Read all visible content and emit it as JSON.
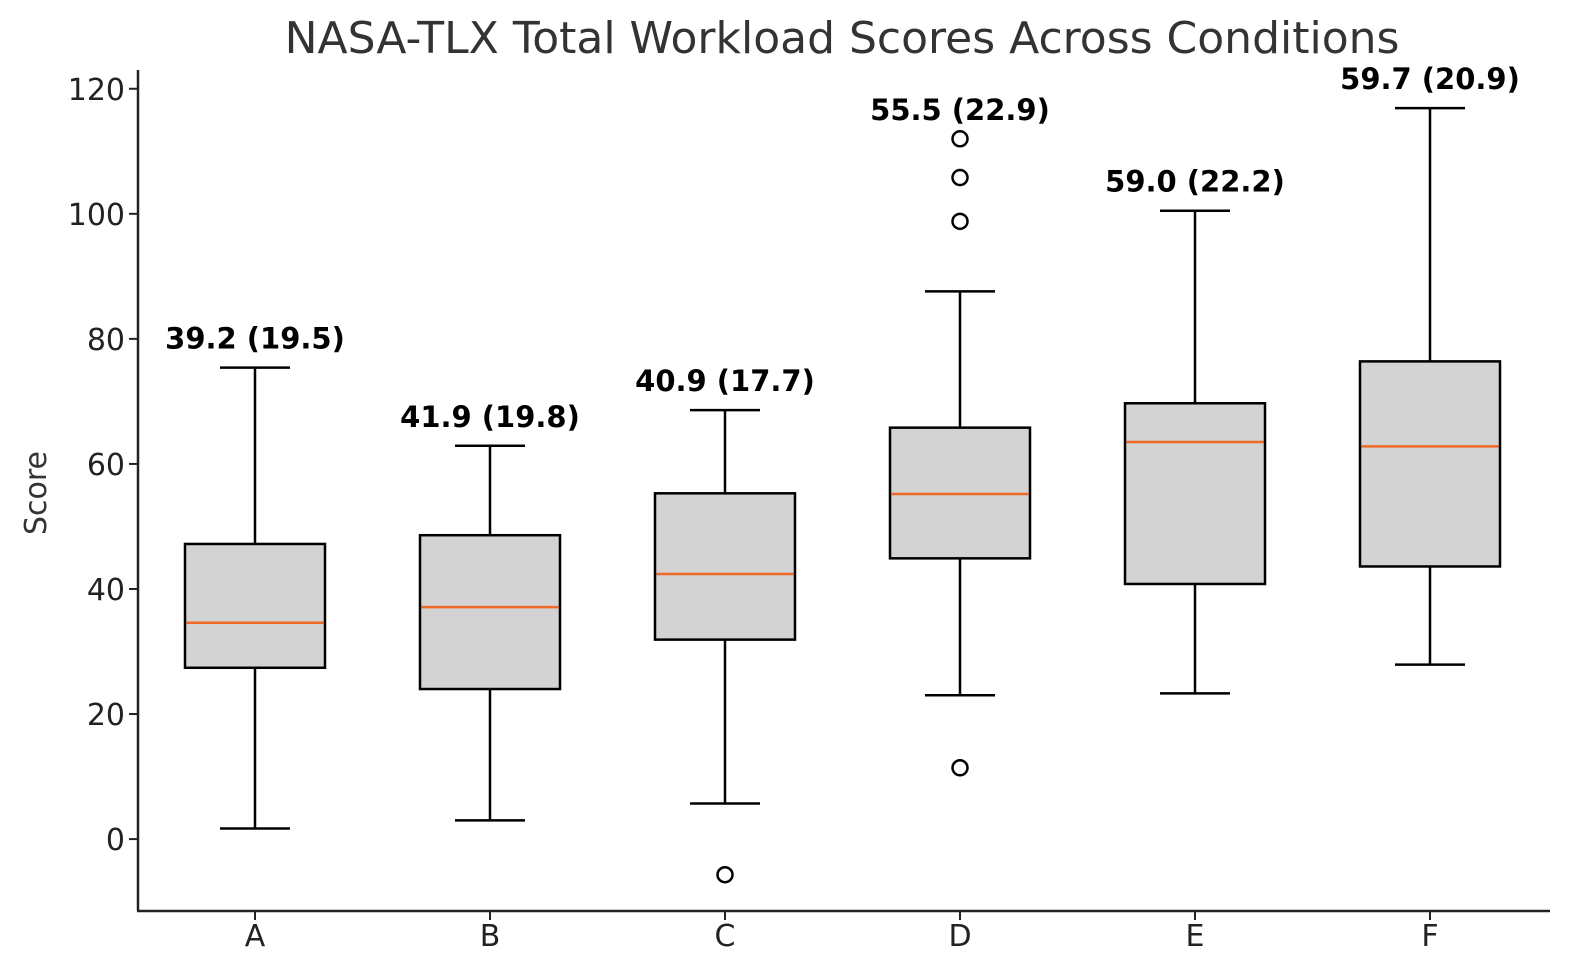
{
  "chart_data": {
    "type": "boxplot",
    "title": "NASA-TLX Total Workload Scores Across Conditions",
    "xlabel": "",
    "ylabel": "Score",
    "ylim": [
      -11.5,
      123
    ],
    "yticks": [
      0,
      20,
      40,
      60,
      80,
      100,
      120
    ],
    "grid": false,
    "colors": {
      "box_fill": "#d3d3d3",
      "box_edge": "#000000",
      "median": "#f06a27",
      "text": "#333333"
    },
    "categories": [
      "A",
      "B",
      "C",
      "D",
      "E",
      "F"
    ],
    "boxes": [
      {
        "label": "A",
        "whisker_low": 1.7,
        "q1": 27.4,
        "median": 34.6,
        "q3": 47.2,
        "whisker_high": 75.4,
        "outliers": [],
        "annotation": "39.2 (19.5)"
      },
      {
        "label": "B",
        "whisker_low": 3.0,
        "q1": 24.0,
        "median": 37.1,
        "q3": 48.6,
        "whisker_high": 62.9,
        "outliers": [],
        "annotation": "41.9 (19.8)"
      },
      {
        "label": "C",
        "whisker_low": 5.7,
        "q1": 31.9,
        "median": 42.4,
        "q3": 55.3,
        "whisker_high": 68.6,
        "outliers": [
          -5.7
        ],
        "annotation": "40.9 (17.7)"
      },
      {
        "label": "D",
        "whisker_low": 23.0,
        "q1": 44.9,
        "median": 55.2,
        "q3": 65.8,
        "whisker_high": 87.6,
        "outliers": [
          11.4,
          98.8,
          105.8,
          112.0
        ],
        "annotation": "55.5 (22.9)"
      },
      {
        "label": "E",
        "whisker_low": 23.3,
        "q1": 40.8,
        "median": 63.5,
        "q3": 69.7,
        "whisker_high": 100.5,
        "outliers": [],
        "annotation": "59.0 (22.2)"
      },
      {
        "label": "F",
        "whisker_low": 27.9,
        "q1": 43.6,
        "median": 62.8,
        "q3": 76.4,
        "whisker_high": 116.9,
        "outliers": [],
        "annotation": "59.7 (20.9)"
      }
    ]
  }
}
